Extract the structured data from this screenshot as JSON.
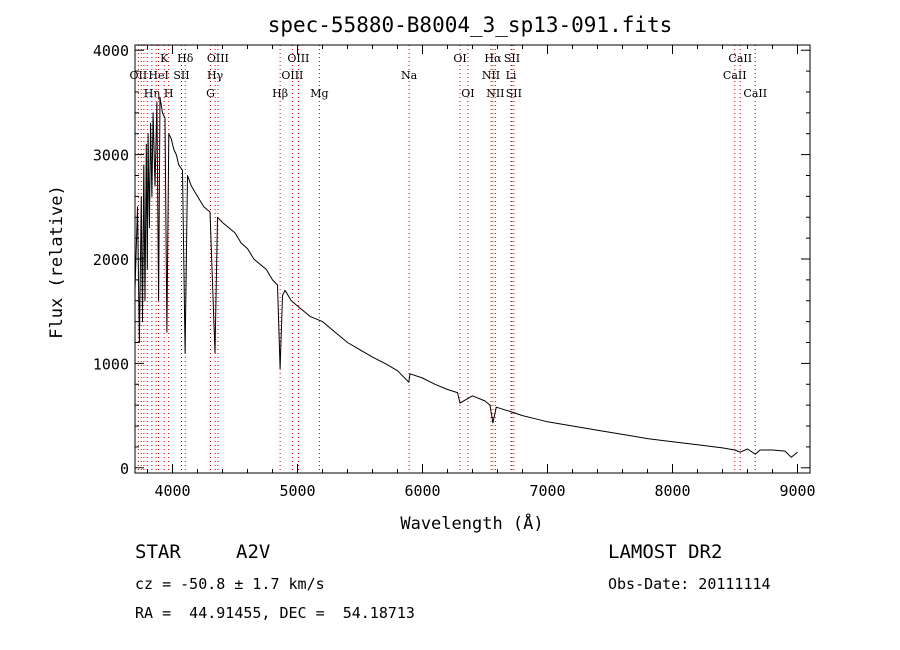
{
  "chart_data": {
    "type": "line",
    "title": "spec-55880-B8004_3_sp13-091.fits",
    "xlabel": "Wavelength (Å)",
    "ylabel": "Flux (relative)",
    "xlim": [
      3700,
      9100
    ],
    "ylim": [
      -50,
      4050
    ],
    "xticks": [
      "4000",
      "5000",
      "6000",
      "7000",
      "8000",
      "9000"
    ],
    "yticks": [
      "0",
      "1000",
      "2000",
      "3000",
      "4000"
    ],
    "xtick_values": [
      4000,
      5000,
      6000,
      7000,
      8000,
      9000
    ],
    "ytick_values": [
      0,
      1000,
      2000,
      3000,
      4000
    ],
    "grid": false,
    "series": [
      {
        "x": [
          3700,
          3720,
          3735,
          3750,
          3760,
          3770,
          3780,
          3790,
          3798,
          3805,
          3815,
          3825,
          3835,
          3845,
          3860,
          3875,
          3889,
          3900,
          3920,
          3940,
          3955,
          3970,
          3990,
          4010,
          4030,
          4050,
          4080,
          4101,
          4120,
          4150,
          4200,
          4250,
          4300,
          4340,
          4360,
          4400,
          4450,
          4500,
          4550,
          4600,
          4650,
          4700,
          4750,
          4800,
          4840,
          4861,
          4880,
          4900,
          4950,
          5000,
          5100,
          5200,
          5300,
          5400,
          5500,
          5600,
          5700,
          5800,
          5890,
          5900,
          6000,
          6100,
          6200,
          6280,
          6300,
          6400,
          6500,
          6540,
          6563,
          6590,
          6700,
          6800,
          6900,
          7000,
          7200,
          7400,
          7600,
          7800,
          8000,
          8200,
          8400,
          8498,
          8542,
          8600,
          8662,
          8700,
          8800,
          8900,
          8950,
          9000
        ],
        "y": [
          1700,
          2500,
          1200,
          2600,
          1400,
          2900,
          1600,
          3100,
          1900,
          3200,
          2300,
          3300,
          2600,
          3400,
          2700,
          3500,
          1600,
          3550,
          3400,
          3350,
          1300,
          3200,
          3150,
          3050,
          3000,
          2900,
          2850,
          1100,
          2800,
          2700,
          2600,
          2500,
          2450,
          1100,
          2400,
          2350,
          2300,
          2250,
          2150,
          2100,
          2000,
          1950,
          1900,
          1800,
          1750,
          950,
          1650,
          1700,
          1600,
          1550,
          1450,
          1400,
          1300,
          1200,
          1130,
          1060,
          1000,
          930,
          820,
          900,
          860,
          800,
          750,
          720,
          620,
          690,
          640,
          600,
          430,
          580,
          540,
          500,
          470,
          440,
          400,
          360,
          320,
          280,
          250,
          220,
          190,
          170,
          150,
          180,
          130,
          170,
          170,
          160,
          100,
          150
        ]
      }
    ],
    "lines": [
      {
        "x": 3727,
        "t": "OII",
        "row": 1
      },
      {
        "x": 3750,
        "t": "",
        "row": 0
      },
      {
        "x": 3771,
        "t": "",
        "row": 0
      },
      {
        "x": 3798,
        "t": "",
        "row": 0
      },
      {
        "x": 3835,
        "t": "Hη",
        "row": 2
      },
      {
        "x": 3869,
        "t": "",
        "row": 0
      },
      {
        "x": 3889,
        "t": "HeI",
        "row": 1
      },
      {
        "x": 3934,
        "t": "K",
        "row": 0
      },
      {
        "x": 3969,
        "t": "H",
        "row": 2
      },
      {
        "x": 4072,
        "t": "SII",
        "row": 1
      },
      {
        "x": 4102,
        "t": "Hδ",
        "row": 0
      },
      {
        "x": 4304,
        "t": "G",
        "row": 2
      },
      {
        "x": 4341,
        "t": "Hγ",
        "row": 1
      },
      {
        "x": 4363,
        "t": "OIII",
        "row": 0
      },
      {
        "x": 4861,
        "t": "Hβ",
        "row": 2
      },
      {
        "x": 4959,
        "t": "OIII",
        "row": 1
      },
      {
        "x": 5007,
        "t": "OIII",
        "row": 0
      },
      {
        "x": 5175,
        "t": "Mg",
        "row": 2
      },
      {
        "x": 5893,
        "t": "Na",
        "row": 1
      },
      {
        "x": 6300,
        "t": "OI",
        "row": 0
      },
      {
        "x": 6363,
        "t": "OI",
        "row": 2
      },
      {
        "x": 6548,
        "t": "NII",
        "row": 1
      },
      {
        "x": 6563,
        "t": "Hα",
        "row": 0
      },
      {
        "x": 6583,
        "t": "NII",
        "row": 2
      },
      {
        "x": 6708,
        "t": "Li",
        "row": 1
      },
      {
        "x": 6716,
        "t": "SII",
        "row": 0
      },
      {
        "x": 6731,
        "t": "SII",
        "row": 2
      },
      {
        "x": 8498,
        "t": "CaII",
        "row": 1
      },
      {
        "x": 8542,
        "t": "CaII",
        "row": 0
      },
      {
        "x": 8662,
        "t": "CaII",
        "row": 2
      }
    ],
    "label_color": "#000000",
    "marker_color": "#cc0000"
  },
  "info": {
    "obj_class": "STAR",
    "subclass": "A2V",
    "survey": "LAMOST DR2",
    "cz": "cz = -50.8 ± 1.7 km/s",
    "obsdate": "Obs-Date: 20111114",
    "radec": "RA =  44.91455, DEC =  54.18713"
  }
}
